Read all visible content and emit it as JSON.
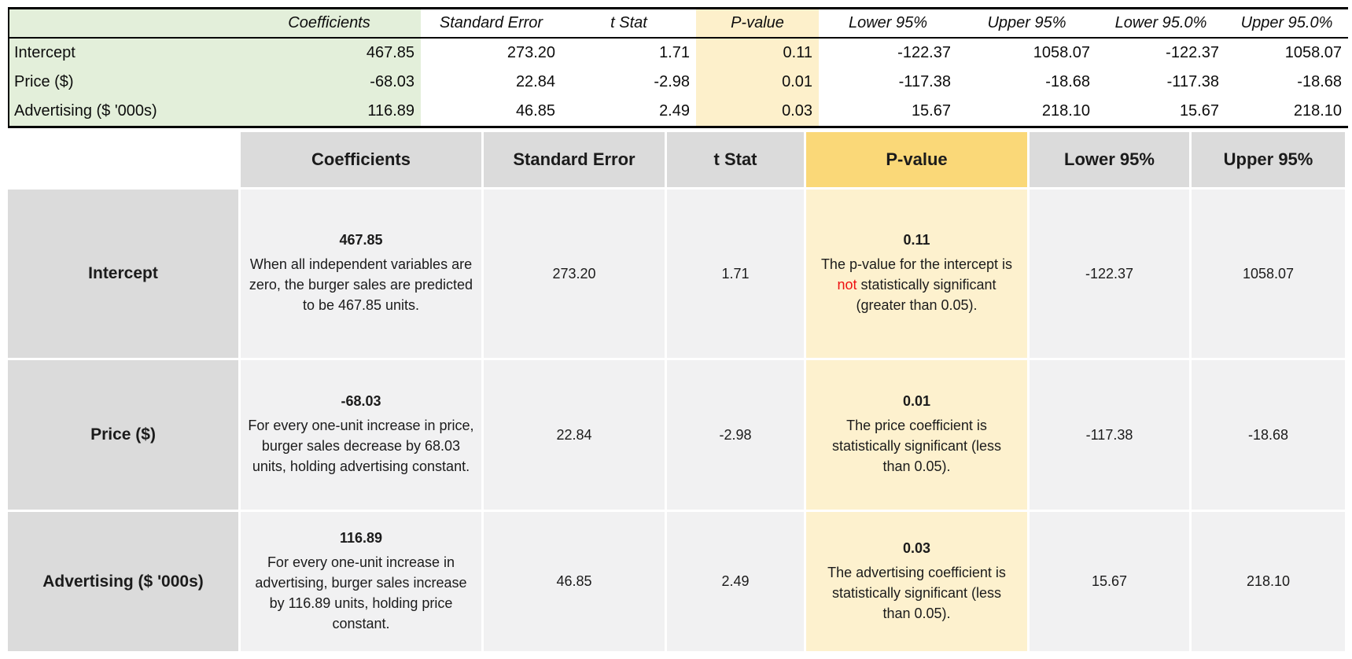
{
  "colors": {
    "top_green": "#e3efda",
    "top_cream": "#fdf0cb",
    "header_gray": "#dbdbdb",
    "body_gray": "#f1f1f2",
    "gold_header": "#fad878",
    "cream_body": "#fdf1ce",
    "highlight_red": "#ee1111"
  },
  "top_table": {
    "headers": [
      "",
      "Coefficients",
      "Standard Error",
      "t Stat",
      "P-value",
      "Lower 95%",
      "Upper 95%",
      "Lower 95.0%",
      "Upper 95.0%"
    ],
    "rows": [
      {
        "label": "Intercept",
        "values": [
          "467.85",
          "273.20",
          "1.71",
          "0.11",
          "-122.37",
          "1058.07",
          "-122.37",
          "1058.07"
        ]
      },
      {
        "label": "Price ($)",
        "values": [
          "-68.03",
          "22.84",
          "-2.98",
          "0.01",
          "-117.38",
          "-18.68",
          "-117.38",
          "-18.68"
        ]
      },
      {
        "label": "Advertising ($ '000s)",
        "values": [
          "116.89",
          "46.85",
          "2.49",
          "0.03",
          "15.67",
          "218.10",
          "15.67",
          "218.10"
        ]
      }
    ]
  },
  "bottom_table": {
    "headers": [
      "",
      "Coefficients",
      "Standard Error",
      "t Stat",
      "P-value",
      "Lower 95%",
      "Upper 95%"
    ],
    "rows": [
      {
        "label": "Intercept",
        "coefficient_value": "467.85",
        "coefficient_note": "When all independent variables are zero, the burger sales are predicted to be 467.85 units.",
        "standard_error": "273.20",
        "t_stat": "1.71",
        "p_value": "0.11",
        "p_note_before": "The p-value for the intercept is ",
        "p_note_highlight": "not",
        "p_note_after": " statistically significant (greater than 0.05).",
        "lower_95": "-122.37",
        "upper_95": "1058.07"
      },
      {
        "label": "Price ($)",
        "coefficient_value": "-68.03",
        "coefficient_note": "For every one-unit increase in price, burger sales decrease by 68.03 units, holding advertising constant.",
        "standard_error": "22.84",
        "t_stat": "-2.98",
        "p_value": "0.01",
        "p_note_before": "The price coefficient is statistically significant (less than 0.05).",
        "p_note_highlight": "",
        "p_note_after": "",
        "lower_95": "-117.38",
        "upper_95": "-18.68"
      },
      {
        "label": "Advertising ($ '000s)",
        "coefficient_value": "116.89",
        "coefficient_note": "For every one-unit increase in advertising, burger sales increase by 116.89 units, holding price constant.",
        "standard_error": "46.85",
        "t_stat": "2.49",
        "p_value": "0.03",
        "p_note_before": "The advertising coefficient is statistically significant (less than 0.05).",
        "p_note_highlight": "",
        "p_note_after": "",
        "lower_95": "15.67",
        "upper_95": "218.10"
      }
    ]
  }
}
